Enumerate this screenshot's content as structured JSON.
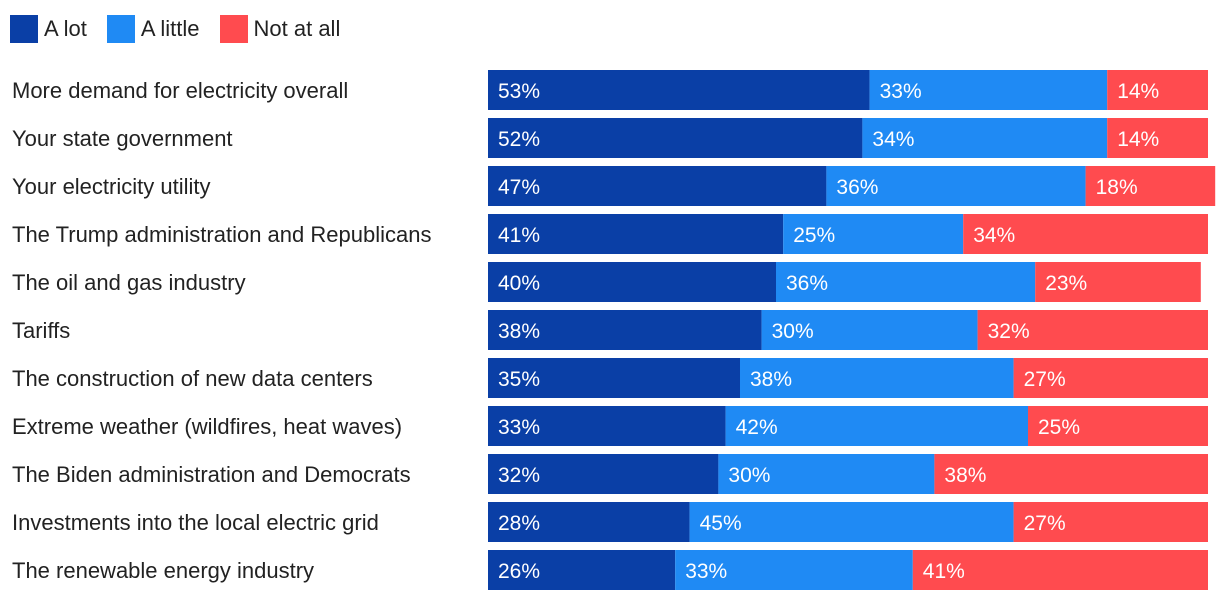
{
  "chart_data": {
    "type": "bar",
    "orientation": "horizontal",
    "stacked": true,
    "normalized_percent": true,
    "title": "",
    "xlabel": "",
    "ylabel": "",
    "xlim": [
      0,
      100
    ],
    "legend_position": "top-left",
    "categories": [
      "More demand for electricity overall",
      "Your state government",
      "Your electricity utility",
      "The Trump administration and Republicans",
      "The oil and gas industry",
      "Tariffs",
      "The construction of new data centers",
      "Extreme weather (wildfires, heat waves)",
      "The Biden administration and Democrats",
      "Investments into the local electric grid",
      "The renewable energy industry"
    ],
    "series": [
      {
        "name": "A lot",
        "color": "#0a3fa6",
        "values": [
          53,
          52,
          47,
          41,
          40,
          38,
          35,
          33,
          32,
          28,
          26
        ]
      },
      {
        "name": "A little",
        "color": "#1f8af4",
        "values": [
          33,
          34,
          36,
          25,
          36,
          30,
          38,
          42,
          30,
          45,
          33
        ]
      },
      {
        "name": "Not at all",
        "color": "#ff4b4f",
        "values": [
          14,
          14,
          18,
          34,
          23,
          32,
          27,
          25,
          38,
          27,
          41
        ]
      }
    ],
    "value_suffix": "%"
  }
}
